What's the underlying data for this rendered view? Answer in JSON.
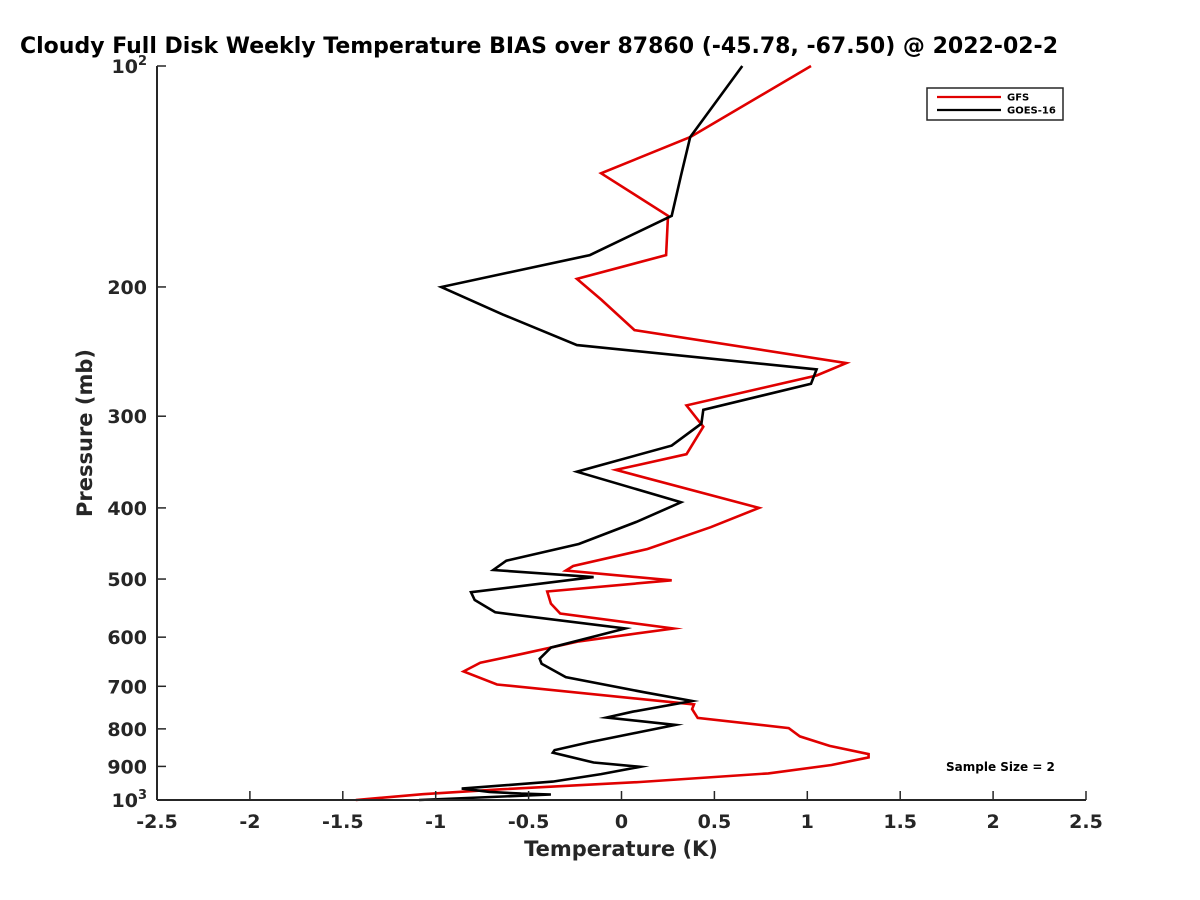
{
  "chart_data": {
    "type": "line",
    "title": "Cloudy Full Disk Weekly Temperature BIAS over 87860 (-45.78, -67.50) @ 2022-02-2",
    "xlabel": "Temperature (K)",
    "ylabel": "Pressure (mb)",
    "xlim": [
      -2.5,
      2.5
    ],
    "ylim": [
      1000,
      100
    ],
    "yscale": "log",
    "y_reversed": true,
    "x_ticks": [
      -2.5,
      -2,
      -1.5,
      -1,
      -0.5,
      0,
      0.5,
      1,
      1.5,
      2,
      2.5
    ],
    "x_tick_labels": [
      "-2.5",
      "-2",
      "-1.5",
      "-1",
      "-0.5",
      "0",
      "0.5",
      "1",
      "1.5",
      "2",
      "2.5"
    ],
    "y_ticks": [
      100,
      200,
      300,
      400,
      500,
      600,
      700,
      800,
      900,
      1000
    ],
    "y_tick_labels": [
      {
        "base": "10",
        "exp": "2"
      },
      {
        "base": "200",
        "exp": ""
      },
      {
        "base": "300",
        "exp": ""
      },
      {
        "base": "400",
        "exp": ""
      },
      {
        "base": "500",
        "exp": ""
      },
      {
        "base": "600",
        "exp": ""
      },
      {
        "base": "700",
        "exp": ""
      },
      {
        "base": "800",
        "exp": ""
      },
      {
        "base": "900",
        "exp": ""
      },
      {
        "base": "10",
        "exp": "3"
      }
    ],
    "grid": false,
    "legend_position": "top-right",
    "series": [
      {
        "name": "GFS",
        "color": "#e00000",
        "points": [
          [
            1.02,
            100
          ],
          [
            0.37,
            125
          ],
          [
            -0.11,
            140
          ],
          [
            0.25,
            160
          ],
          [
            0.24,
            181
          ],
          [
            -0.24,
            195
          ],
          [
            -0.11,
            208
          ],
          [
            0.07,
            229
          ],
          [
            1.21,
            254
          ],
          [
            1.05,
            264
          ],
          [
            0.35,
            290
          ],
          [
            0.44,
            310
          ],
          [
            0.35,
            338
          ],
          [
            -0.03,
            355
          ],
          [
            0.74,
            400
          ],
          [
            0.48,
            425
          ],
          [
            0.14,
            455
          ],
          [
            -0.26,
            480
          ],
          [
            -0.3,
            487
          ],
          [
            0.27,
            502
          ],
          [
            -0.4,
            520
          ],
          [
            -0.38,
            540
          ],
          [
            -0.33,
            557
          ],
          [
            0.28,
            584
          ],
          [
            -0.23,
            608
          ],
          [
            -0.53,
            632
          ],
          [
            -0.76,
            650
          ],
          [
            -0.85,
            668
          ],
          [
            -0.67,
            696
          ],
          [
            0.39,
            741
          ],
          [
            0.38,
            752
          ],
          [
            0.41,
            773
          ],
          [
            0.9,
            798
          ],
          [
            0.96,
            819
          ],
          [
            1.12,
            844
          ],
          [
            1.33,
            866
          ],
          [
            1.33,
            875
          ],
          [
            1.13,
            896
          ],
          [
            0.79,
            920
          ],
          [
            0.1,
            945
          ],
          [
            -0.65,
            967
          ],
          [
            -1.07,
            982
          ],
          [
            -1.43,
            1000
          ]
        ]
      },
      {
        "name": "GOES-16",
        "color": "#000000",
        "points": [
          [
            0.65,
            100
          ],
          [
            0.37,
            125
          ],
          [
            0.32,
            141
          ],
          [
            0.27,
            160
          ],
          [
            -0.17,
            181
          ],
          [
            -0.97,
            200
          ],
          [
            -0.64,
            218
          ],
          [
            -0.24,
            240
          ],
          [
            1.05,
            259
          ],
          [
            1.02,
            271
          ],
          [
            0.44,
            294
          ],
          [
            0.43,
            307
          ],
          [
            0.27,
            329
          ],
          [
            -0.24,
            357
          ],
          [
            0.32,
            393
          ],
          [
            0.08,
            418
          ],
          [
            -0.23,
            448
          ],
          [
            -0.62,
            472
          ],
          [
            -0.69,
            486
          ],
          [
            -0.15,
            497
          ],
          [
            -0.81,
            521
          ],
          [
            -0.79,
            534
          ],
          [
            -0.68,
            555
          ],
          [
            0.02,
            584
          ],
          [
            -0.38,
            620
          ],
          [
            -0.44,
            642
          ],
          [
            -0.43,
            652
          ],
          [
            -0.3,
            680
          ],
          [
            0.12,
            713
          ],
          [
            0.38,
            733
          ],
          [
            0.06,
            758
          ],
          [
            -0.08,
            772
          ],
          [
            0.29,
            790
          ],
          [
            0.1,
            808
          ],
          [
            -0.18,
            835
          ],
          [
            -0.36,
            855
          ],
          [
            -0.37,
            862
          ],
          [
            -0.15,
            889
          ],
          [
            0.1,
            901
          ],
          [
            -0.11,
            922
          ],
          [
            -0.37,
            944
          ],
          [
            -0.86,
            965
          ],
          [
            -0.71,
            975
          ],
          [
            -0.54,
            980
          ],
          [
            -0.38,
            983
          ],
          [
            -1.09,
            1000
          ]
        ]
      }
    ],
    "annotations": [
      "Sample Size = 2"
    ]
  }
}
